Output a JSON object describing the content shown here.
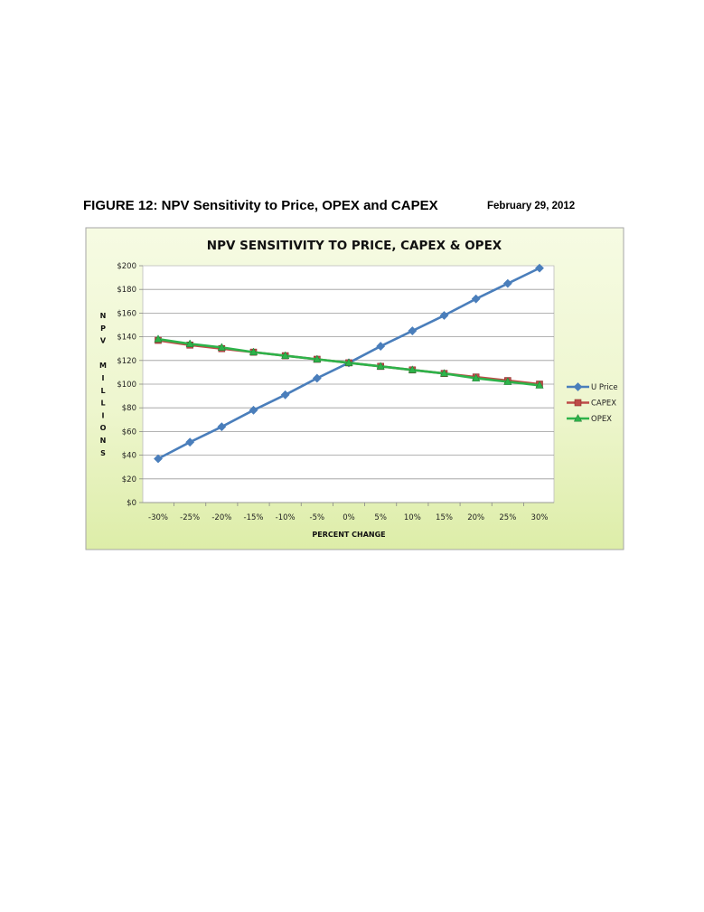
{
  "header": {
    "figure_title": "FIGURE 12:  NPV Sensitivity to Price, OPEX and CAPEX",
    "date": "February 29, 2012"
  },
  "chart_data": {
    "type": "line",
    "title": "NPV SENSITIVITY TO PRICE, CAPEX & OPEX",
    "xlabel": "PERCENT CHANGE",
    "ylabel": "NPV MILLIONS",
    "ylabel_lines": [
      "N",
      "P",
      "V",
      "",
      "M",
      "I",
      "L",
      "L",
      "I",
      "O",
      "N",
      "S"
    ],
    "categories": [
      "-30%",
      "-25%",
      "-20%",
      "-15%",
      "-10%",
      "-5%",
      "0%",
      "5%",
      "10%",
      "15%",
      "20%",
      "25%",
      "30%"
    ],
    "y_ticks": [
      "$0",
      "$20",
      "$40",
      "$60",
      "$80",
      "$100",
      "$120",
      "$140",
      "$160",
      "$180",
      "$200"
    ],
    "ylim": [
      0,
      200
    ],
    "grid": true,
    "legend_position": "right",
    "series": [
      {
        "name": "U Price",
        "color": "#4a7ebb",
        "marker": "diamond",
        "values": [
          37,
          51,
          64,
          78,
          91,
          105,
          118,
          132,
          145,
          158,
          172,
          185,
          198
        ]
      },
      {
        "name": "CAPEX",
        "color": "#be4b48",
        "marker": "square",
        "values": [
          137,
          133,
          130,
          127,
          124,
          121,
          118,
          115,
          112,
          109,
          106,
          103,
          100
        ]
      },
      {
        "name": "OPEX",
        "color": "#2db34a",
        "marker": "triangle",
        "values": [
          138,
          134,
          131,
          127,
          124,
          121,
          118,
          115,
          112,
          109,
          105,
          102,
          99
        ]
      }
    ]
  }
}
